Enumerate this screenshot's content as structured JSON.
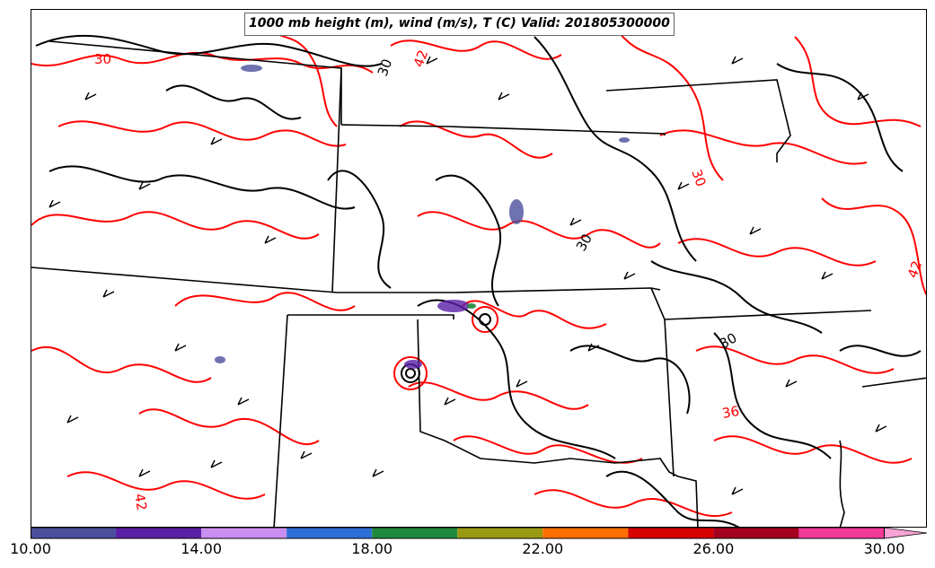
{
  "title": "1000 mb height (m), wind (m/s), T (C) Valid: 201805300000",
  "map": {
    "contour_labels": [
      {
        "text": "30",
        "color": "#000000"
      },
      {
        "text": "30",
        "color": "#000000"
      },
      {
        "text": "30",
        "color": "#000000"
      },
      {
        "text": "30",
        "color": "#ff0000"
      },
      {
        "text": "30",
        "color": "#ff0000"
      },
      {
        "text": "42",
        "color": "#ff0000"
      },
      {
        "text": "42",
        "color": "#ff0000"
      },
      {
        "text": "42",
        "color": "#ff0000"
      },
      {
        "text": "36",
        "color": "#ff0000"
      }
    ],
    "line_colors": {
      "height": "#000000",
      "temperature": "#ff0000",
      "borders": "#000000"
    }
  },
  "colorbar": {
    "min": 10,
    "max": 31,
    "tick_labels": [
      "10.00",
      "14.00",
      "18.00",
      "22.00",
      "26.00",
      "30.00"
    ],
    "tick_values": [
      10,
      14,
      18,
      22,
      26,
      30
    ],
    "bins": [
      {
        "from": 10,
        "to": 12,
        "color": "#4b4f9c"
      },
      {
        "from": 12,
        "to": 14,
        "color": "#5a1fa6"
      },
      {
        "from": 14,
        "to": 16,
        "color": "#c98ef0"
      },
      {
        "from": 16,
        "to": 18,
        "color": "#2f6ed8"
      },
      {
        "from": 18,
        "to": 20,
        "color": "#1f8a3e"
      },
      {
        "from": 20,
        "to": 22,
        "color": "#9a9a12"
      },
      {
        "from": 22,
        "to": 24,
        "color": "#ff6f00"
      },
      {
        "from": 24,
        "to": 26,
        "color": "#d60000"
      },
      {
        "from": 26,
        "to": 28,
        "color": "#a3001e"
      },
      {
        "from": 28,
        "to": 30,
        "color": "#f23a9a"
      },
      {
        "from": 30,
        "to": 31,
        "color": "#f7a3d4"
      }
    ]
  }
}
